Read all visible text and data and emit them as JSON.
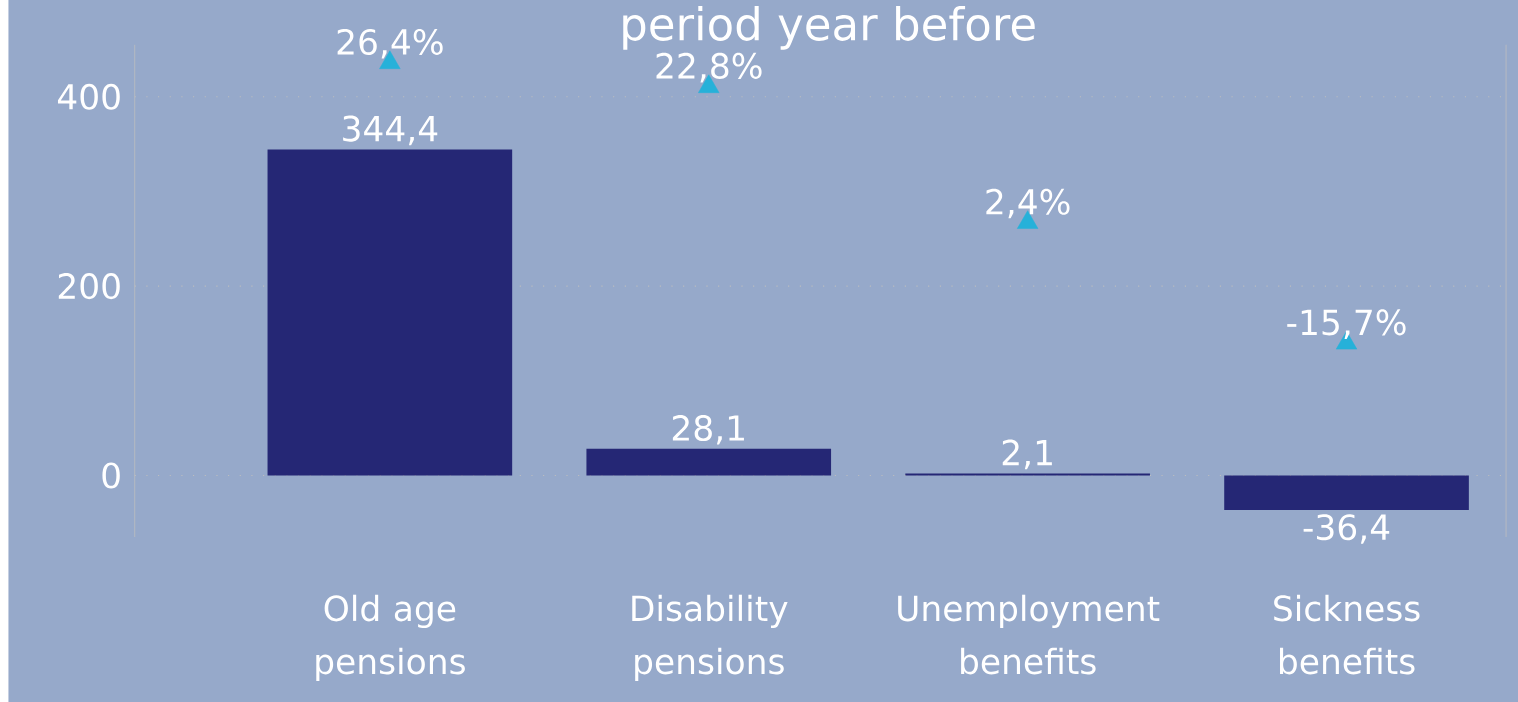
{
  "chart_data": {
    "type": "bar",
    "title": "period year before",
    "categories": [
      "Old age pensions",
      "Disability pensions",
      "Unemployment benefits",
      "Sickness benefits"
    ],
    "series": [
      {
        "color": "#252775",
        "values": [
          344.4,
          28.1,
          2.1,
          -36.4
        ],
        "value_labels": [
          "344,4",
          "28,1",
          "2,1",
          "-36,4"
        ]
      },
      {
        "type": "scatter",
        "axis": "y2",
        "marker": "triangle",
        "color": "#26b1d9",
        "values": [
          26.4,
          22.8,
          2.4,
          -15.7
        ],
        "value_labels": [
          "26,4%",
          "22,8%",
          "2,4%",
          "-15,7%"
        ]
      }
    ],
    "ylim": [
      -65,
      455
    ],
    "yticks": [
      0,
      200,
      400
    ],
    "y2lim": [
      -44.8,
      29.1
    ],
    "grid": "y"
  }
}
